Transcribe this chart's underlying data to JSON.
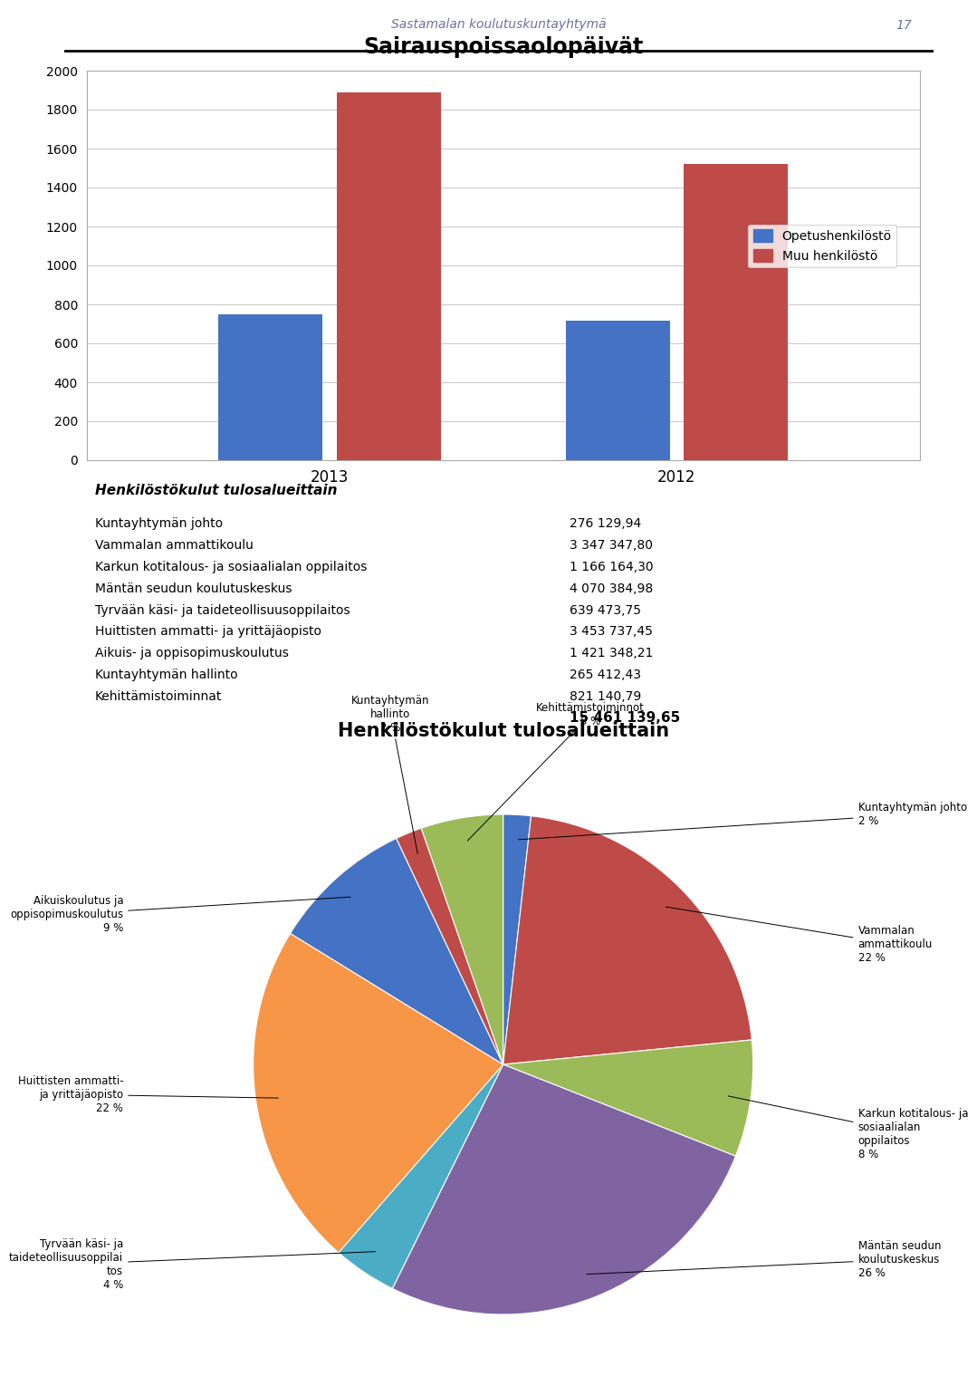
{
  "page_header": "Sastamalan koulutuskuntayhtymä",
  "page_number": "17",
  "bar_title": "Sairauspoissaolopäivät",
  "bar_years": [
    "2013",
    "2012"
  ],
  "bar_opetus": [
    750,
    715
  ],
  "bar_muu": [
    1890,
    1520
  ],
  "bar_color_opetus": "#4472C4",
  "bar_color_muu": "#BE4B48",
  "bar_legend_opetus": "Opetushenkilöstö",
  "bar_legend_muu": "Muu henkilöstö",
  "bar_ylim": [
    0,
    2000
  ],
  "bar_yticks": [
    0,
    200,
    400,
    600,
    800,
    1000,
    1200,
    1400,
    1600,
    1800,
    2000
  ],
  "table_title": "Henkilöstökulut tulosalueittain",
  "table_rows": [
    [
      "Kuntayhtymän johto",
      "276 129,94"
    ],
    [
      "Vammalan ammattikoulu",
      "3 347 347,80"
    ],
    [
      "Karkun kotitalous- ja sosiaalialan oppilaitos",
      "1 166 164,30"
    ],
    [
      "Mäntän seudun koulutuskeskus",
      "4 070 384,98"
    ],
    [
      "Tyrvään käsi- ja taideteollisuusoppilaitos",
      "639 473,75"
    ],
    [
      "Huittisten ammatti- ja yrittäjäopisto",
      "3 453 737,45"
    ],
    [
      "Aikuis- ja oppisopimuskoulutus",
      "1 421 348,21"
    ],
    [
      "Kuntayhtymän hallinto",
      "265 412,43"
    ],
    [
      "Kehittämistoiminnat",
      "821 140,79"
    ],
    [
      "",
      "15 461 139,65"
    ]
  ],
  "pie_title": "Henkilöstökulut tulosalueittain",
  "pie_values": [
    276129.94,
    3347347.8,
    1166164.3,
    4070384.98,
    639473.75,
    3453737.45,
    1421348.21,
    265412.43,
    821140.79
  ],
  "pie_colors": [
    "#4472C4",
    "#BE4B48",
    "#9BBB59",
    "#8064A2",
    "#4BACC6",
    "#F79646",
    "#4472C4",
    "#BE4B48",
    "#9BBB59"
  ],
  "pie_label_data": [
    {
      "text": "Kuntayhtymän johto",
      "pct": "2 %",
      "side": "right",
      "xt": 1.42,
      "yt": 0.9
    },
    {
      "text": "Vammalan\nammattikoulu",
      "pct": "22 %",
      "side": "right",
      "xt": 1.42,
      "yt": 0.38
    },
    {
      "text": "Karkun kotitalous- ja\nsosiaalialan\noppilaitos",
      "pct": "8 %",
      "side": "right",
      "xt": 1.42,
      "yt": -0.38
    },
    {
      "text": "Mäntän seudun\nkoulutuskeskus",
      "pct": "26 %",
      "side": "right",
      "xt": 1.42,
      "yt": -0.88
    },
    {
      "text": "Tyrvään käsi- ja\ntaideteollisuusoppilai\ntos",
      "pct": "4 %",
      "side": "left",
      "xt": -1.52,
      "yt": -0.9
    },
    {
      "text": "Huittisten ammatti-\nja yrittäjäopisto",
      "pct": "22 %",
      "side": "left",
      "xt": -1.52,
      "yt": -0.22
    },
    {
      "text": "Aikuiskoulutus ja\noppisopimuskoulutus",
      "pct": "9 %",
      "side": "left",
      "xt": -1.52,
      "yt": 0.5
    },
    {
      "text": "Kuntayhtymän\nhallinto",
      "pct": "2 %",
      "side": "top",
      "xt": -0.45,
      "yt": 1.3
    },
    {
      "text": "Kehittämistoiminnot",
      "pct": "5 %",
      "side": "top",
      "xt": 0.35,
      "yt": 1.3
    }
  ],
  "background_color": "#FFFFFF"
}
